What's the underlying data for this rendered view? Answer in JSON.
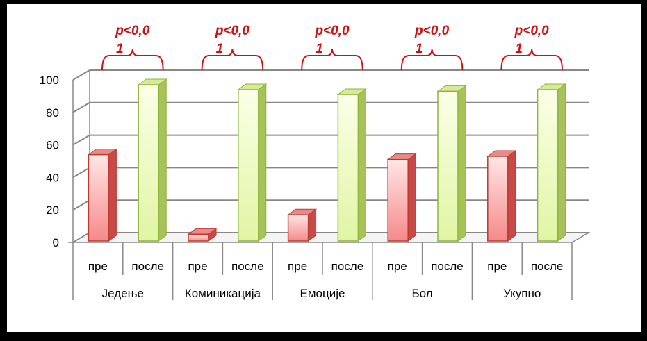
{
  "chart_data": {
    "type": "bar",
    "groups": [
      "Једење",
      "Коминикација",
      "Емоције",
      "Бол",
      "Укупно"
    ],
    "subcategories": [
      "пре",
      "после"
    ],
    "series": [
      {
        "values": [
          54,
          5,
          17,
          51,
          53
        ]
      },
      {
        "values": [
          97,
          94,
          91,
          93,
          94
        ]
      }
    ],
    "y_ticks": [
      "0",
      "20",
      "40",
      "60",
      "80",
      "100"
    ],
    "ylim": [
      0,
      100
    ],
    "grid": true,
    "annotations": [
      {
        "line1": "p<0,0",
        "line2": "1"
      },
      {
        "line1": "p<0,0",
        "line2": "1"
      },
      {
        "line1": "p<0,0",
        "line2": "1"
      },
      {
        "line1": "p<0,0",
        "line2": "1"
      },
      {
        "line1": "p<0,0",
        "line2": "1"
      }
    ],
    "colors": {
      "pre_front_top": "#ffe6e6",
      "pre_front_bottom": "#f58a8a",
      "pre_side": "#c64a4a",
      "pre_top": "#e88a8a",
      "pre_stroke": "#c0392b",
      "post_front_top": "#fbffe8",
      "post_front_bottom": "#e0f5a4",
      "post_side": "#a8c25a",
      "post_top": "#d7eb97",
      "post_stroke": "#8fb43a",
      "annotation": "#d01010",
      "grid": "#888888"
    }
  }
}
